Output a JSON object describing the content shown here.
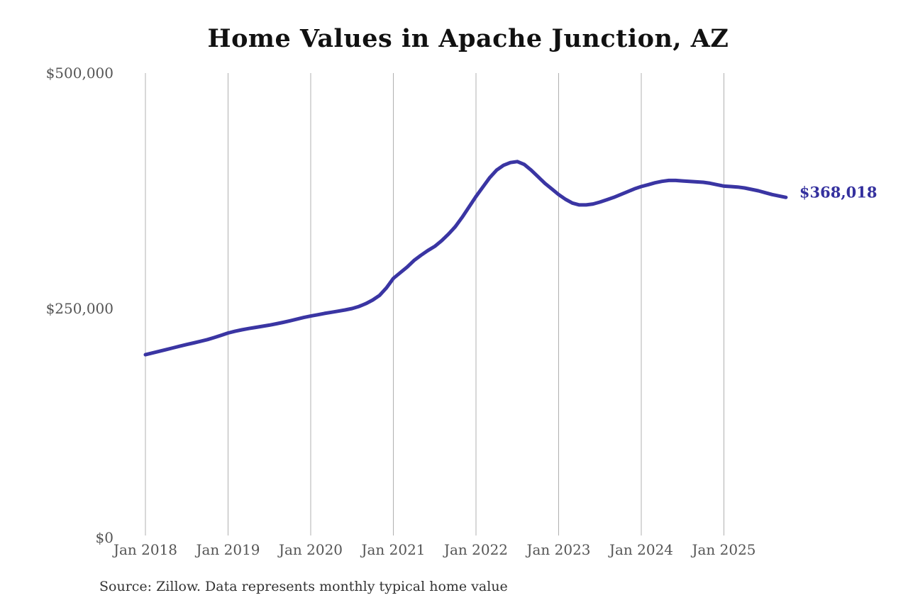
{
  "title": "Home Values in Apache Junction, AZ",
  "source_note": "Source: Zillow. Data represents monthly typical home value",
  "end_label": "$368,018",
  "colors": {
    "line": "#3a35a3",
    "end_label_text": "#34309e",
    "grid": "#b0b0b0",
    "axis_text": "#555555",
    "title_text": "#111111",
    "source_text": "#333333",
    "background": "#ffffff"
  },
  "chart_data": {
    "type": "line",
    "title": "Home Values in Apache Junction, AZ",
    "xlabel": "",
    "ylabel": "",
    "ylim": [
      0,
      500000
    ],
    "grid": "vertical-only",
    "legend": "none",
    "y_ticks": [
      {
        "value": 0,
        "label": "$0"
      },
      {
        "value": 250000,
        "label": "$250,000"
      },
      {
        "value": 500000,
        "label": "$500,000"
      }
    ],
    "x_ticks": [
      {
        "month_index": 0,
        "label": "Jan 2018"
      },
      {
        "month_index": 12,
        "label": "Jan 2019"
      },
      {
        "month_index": 24,
        "label": "Jan 2020"
      },
      {
        "month_index": 36,
        "label": "Jan 2021"
      },
      {
        "month_index": 48,
        "label": "Jan 2022"
      },
      {
        "month_index": 60,
        "label": "Jan 2023"
      },
      {
        "month_index": 72,
        "label": "Jan 2024"
      },
      {
        "month_index": 84,
        "label": "Jan 2025"
      }
    ],
    "series": [
      {
        "name": "Monthly typical home value",
        "start": "2018-01",
        "frequency": "monthly",
        "end_value": 368018,
        "values": [
          201000,
          202800,
          204600,
          206400,
          208200,
          210000,
          211800,
          213500,
          215200,
          217000,
          219200,
          221600,
          224000,
          225800,
          227400,
          228800,
          230000,
          231200,
          232400,
          233800,
          235300,
          237000,
          238800,
          240500,
          242000,
          243400,
          244800,
          246000,
          247200,
          248500,
          250000,
          252200,
          255200,
          259000,
          264000,
          272000,
          282000,
          288000,
          294000,
          301000,
          306500,
          311500,
          316000,
          322000,
          329000,
          337000,
          347000,
          358000,
          369000,
          379000,
          389000,
          397000,
          402000,
          405000,
          406000,
          403000,
          397000,
          390000,
          383000,
          377000,
          371000,
          366000,
          362000,
          360000,
          360000,
          361000,
          363000,
          365500,
          368000,
          371000,
          374000,
          377000,
          379500,
          381500,
          383500,
          385000,
          386000,
          386000,
          385500,
          385000,
          384500,
          384000,
          383000,
          381500,
          380000,
          379500,
          379000,
          378000,
          376500,
          375000,
          373000,
          371000,
          369500,
          368018
        ]
      }
    ]
  }
}
